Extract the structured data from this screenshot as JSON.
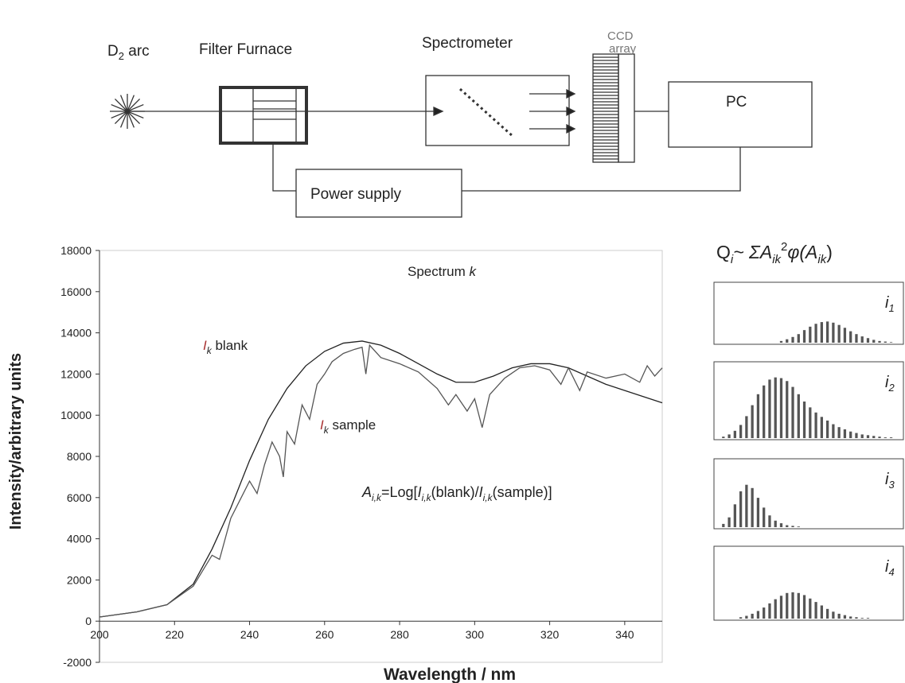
{
  "diagram": {
    "source": {
      "main": "D",
      "sub": "2",
      "rest": " arc"
    },
    "furnace": "Filter Furnace",
    "spectrometer": "Spectrometer",
    "ccd": [
      "CCD",
      "array"
    ],
    "pc": "PC",
    "power": "Power supply"
  },
  "chart_data": {
    "type": "line",
    "xlabel": "Wavelength / nm",
    "ylabel": "Intensity/arbitrary units",
    "xlim": [
      200,
      350
    ],
    "ylim": [
      -2000,
      18000
    ],
    "xticks": [
      200,
      220,
      240,
      260,
      280,
      300,
      320,
      340
    ],
    "yticks": [
      -2000,
      0,
      2000,
      4000,
      6000,
      8000,
      10000,
      12000,
      14000,
      16000,
      18000
    ],
    "series": [
      {
        "color": "#222222",
        "x": [
          200,
          210,
          218,
          225,
          230,
          235,
          240,
          245,
          250,
          255,
          260,
          265,
          270,
          275,
          280,
          285,
          290,
          295,
          300,
          305,
          310,
          315,
          320,
          325,
          330,
          335,
          340,
          345,
          350
        ],
        "values": [
          200,
          450,
          800,
          1800,
          3500,
          5500,
          7800,
          9800,
          11300,
          12400,
          13100,
          13500,
          13600,
          13400,
          13000,
          12500,
          12000,
          11600,
          11600,
          11900,
          12300,
          12500,
          12500,
          12300,
          11900,
          11500,
          11200,
          10900,
          10600
        ]
      },
      {
        "color": "#555555",
        "x": [
          200,
          210,
          218,
          225,
          230,
          232,
          235,
          240,
          242,
          244,
          246,
          248,
          249,
          250,
          252,
          254,
          256,
          258,
          260,
          262,
          265,
          268,
          270,
          271,
          272,
          275,
          280,
          285,
          290,
          293,
          295,
          298,
          300,
          302,
          304,
          308,
          312,
          316,
          320,
          323,
          325,
          328,
          330,
          335,
          340,
          344,
          346,
          348,
          350
        ],
        "values": [
          200,
          450,
          800,
          1700,
          3200,
          3000,
          5000,
          6800,
          6200,
          7600,
          8700,
          8000,
          7000,
          9200,
          8600,
          10500,
          9800,
          11500,
          12000,
          12600,
          13000,
          13200,
          13300,
          12000,
          13400,
          12800,
          12500,
          12100,
          11300,
          10500,
          11000,
          10200,
          10800,
          9400,
          11000,
          11800,
          12300,
          12400,
          12200,
          11500,
          12300,
          11200,
          12100,
          11800,
          12000,
          11600,
          12400,
          11900,
          12300
        ]
      }
    ],
    "annotations": {
      "spectrum": {
        "text": "Spectrum ",
        "var": "k"
      },
      "blank": {
        "var": "I",
        "sub": "k",
        "rest": " blank"
      },
      "sample": {
        "var": "I",
        "sub": "k",
        "rest": " sample"
      },
      "formula": [
        "A",
        "i,k",
        "=Log[",
        "I",
        "i,k",
        "(blank)/",
        "I",
        "i,k",
        "(sample)]"
      ]
    }
  },
  "histograms": {
    "title": [
      "Q",
      "i",
      "~ ΣA",
      "ik",
      "2",
      "φ(A",
      "ik",
      ")"
    ],
    "panels": [
      {
        "label": "i",
        "sub": "1",
        "values": [
          0,
          0,
          0,
          0,
          0,
          0,
          0,
          0,
          0,
          0,
          3,
          6,
          10,
          15,
          22,
          28,
          33,
          36,
          37,
          35,
          31,
          26,
          20,
          15,
          11,
          8,
          5,
          3,
          2,
          1
        ]
      },
      {
        "label": "i",
        "sub": "2",
        "values": [
          2,
          5,
          10,
          18,
          30,
          45,
          60,
          72,
          80,
          83,
          82,
          78,
          70,
          60,
          50,
          42,
          35,
          29,
          24,
          19,
          15,
          12,
          9,
          7,
          5,
          4,
          3,
          2,
          1,
          1
        ]
      },
      {
        "label": "i",
        "sub": "3",
        "values": [
          5,
          15,
          35,
          55,
          65,
          60,
          45,
          30,
          18,
          10,
          6,
          3,
          2,
          1,
          0,
          0,
          0,
          0,
          0,
          0,
          0,
          0,
          0,
          0,
          0,
          0,
          0,
          0,
          0,
          0
        ]
      },
      {
        "label": "i",
        "sub": "4",
        "values": [
          0,
          0,
          0,
          2,
          4,
          7,
          11,
          16,
          22,
          28,
          33,
          37,
          38,
          37,
          34,
          29,
          24,
          19,
          14,
          10,
          7,
          5,
          3,
          2,
          1,
          1,
          0,
          0,
          0,
          0
        ]
      }
    ]
  }
}
